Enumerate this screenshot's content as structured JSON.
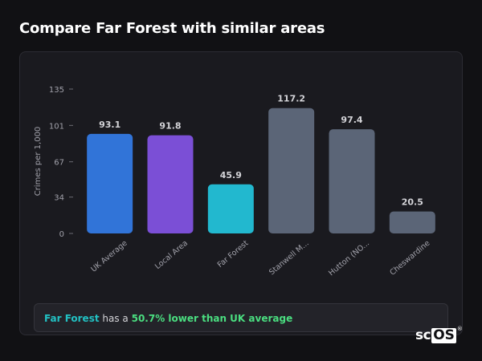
{
  "title": "Compare Far Forest with similar areas",
  "summary": {
    "location": "Far Forest",
    "middle": " has a ",
    "comparison": "50.7% lower than UK average"
  },
  "brand": {
    "name_left": "sc",
    "name_right": "OS",
    "mark": "®"
  },
  "colors": {
    "uk_average": "#3174d8",
    "local_area": "#7b4fd6",
    "far_forest": "#22b8cf",
    "other_areas": "#5b6577"
  },
  "chart_data": {
    "type": "bar",
    "ylabel": "Crimes per 1,000",
    "xlabel": "",
    "ylim": [
      0,
      135
    ],
    "yticks": [
      0,
      34,
      67,
      101,
      135
    ],
    "grid": false,
    "categories": [
      "UK Average",
      "Local Area",
      "Far Forest",
      "Stanwell M...",
      "Hutton (NO...",
      "Cheswardine"
    ],
    "values": [
      93.1,
      91.8,
      45.9,
      117.2,
      97.4,
      20.5
    ],
    "value_labels": [
      "93.1",
      "91.8",
      "45.9",
      "117.2",
      "97.4",
      "20.5"
    ],
    "bar_colors": [
      "#3174d8",
      "#7b4fd6",
      "#22b8cf",
      "#5b6577",
      "#5b6577",
      "#5b6577"
    ]
  }
}
